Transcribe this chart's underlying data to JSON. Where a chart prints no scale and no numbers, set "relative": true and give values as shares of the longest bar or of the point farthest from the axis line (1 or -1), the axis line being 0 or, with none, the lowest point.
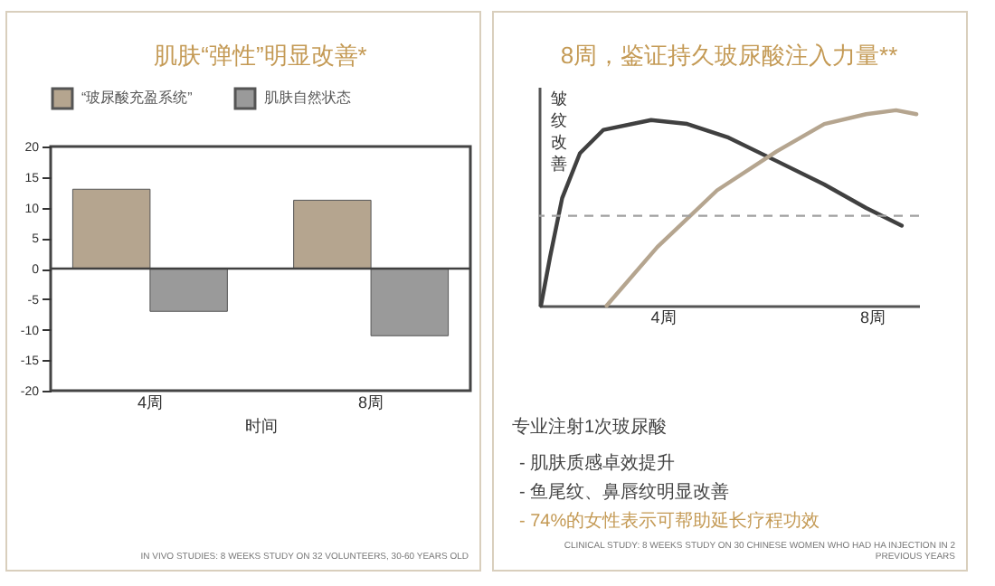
{
  "chart_data": [
    {
      "type": "bar",
      "title": "肌肤“弹性”明显改善*",
      "xlabel": "时间",
      "categories": [
        "4周",
        "8周"
      ],
      "series": [
        {
          "name": "“玻尿酸充盈系统”",
          "color": "#b5a58f",
          "values": [
            13,
            11.2
          ]
        },
        {
          "name": "肌肤自然状态",
          "color": "#9a9a9a",
          "values": [
            -7,
            -11
          ]
        }
      ],
      "ylim": [
        -20,
        20
      ],
      "yticks": [
        -20,
        -15,
        -10,
        -5,
        0,
        5,
        10,
        15,
        20
      ],
      "grid": false,
      "legend": "top",
      "ref_lines": [
        {
          "axis": "y",
          "value": 0,
          "color": "#404040"
        }
      ],
      "annotations": [
        "IN VIVO STUDIES: 8 WEEKS STUDY ON 32 VOLUNTEERS, 30-60 YEARS OLD"
      ]
    },
    {
      "type": "line",
      "title": "8周，鉴证持久玻尿酸注入力量**",
      "ylabel": "皱纹改善",
      "relative": true,
      "xlim": [
        1.64,
        8.9
      ],
      "xticks": [
        {
          "value": 4,
          "label": "4周"
        },
        {
          "value": 8,
          "label": "8周"
        }
      ],
      "series": [
        {
          "name": "专业注射1次玻尿酸",
          "color": "#404040",
          "x": [
            1.675,
            1.85,
            2.08,
            2.42,
            2.87,
            3.78,
            4.47,
            5.26,
            6.18,
            7.09,
            7.89,
            8.57
          ],
          "values": [
            0,
            0.25,
            0.55,
            0.78,
            0.9,
            0.95,
            0.93,
            0.86,
            0.74,
            0.62,
            0.5,
            0.41
          ]
        },
        {
          "color": "#b5a58f",
          "x": [
            2.93,
            3.9,
            5.04,
            6.18,
            7.09,
            7.89,
            8.46,
            8.85
          ],
          "values": [
            0,
            0.3,
            0.59,
            0.79,
            0.93,
            0.98,
            1.0,
            0.98
          ]
        }
      ],
      "ref_lines": [
        {
          "axis": "y",
          "value": 0.46,
          "color": "#a0a0a0",
          "line_style": "dashed"
        }
      ],
      "grid": false,
      "annotations": [
        "-   肌肤质感卓效提升",
        "-   鱼尾纹、鼻唇纹明显改善",
        "-   74%的女性表示可帮助延长疗程功效",
        "CLINICAL STUDY: 8 WEEKS STUDY ON 30 CHINESE WOMEN WHO HAD HA INJECTION IN 2 PREVIOUS YEARS"
      ]
    }
  ]
}
